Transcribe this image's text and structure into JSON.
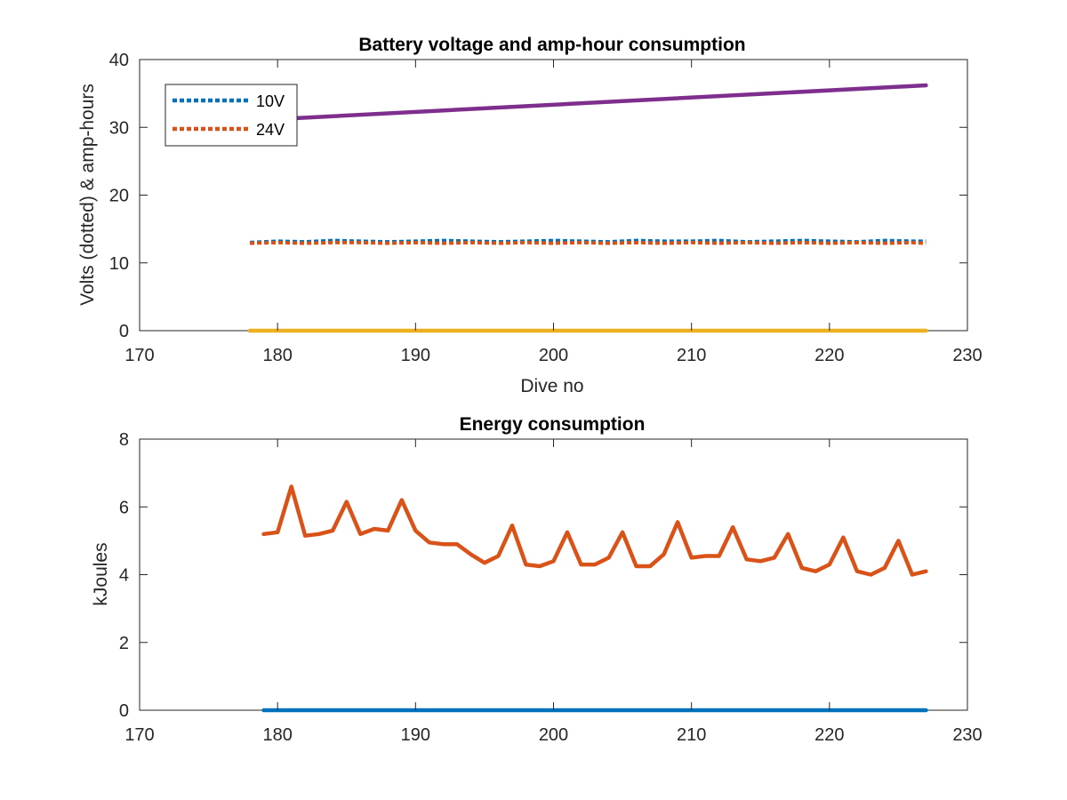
{
  "chart_data": [
    {
      "type": "line",
      "title": "Battery voltage and amp-hour consumption",
      "xlabel": "Dive no",
      "ylabel": "Volts (dotted) & amp-hours",
      "xlim": [
        170,
        230
      ],
      "ylim": [
        0,
        40
      ],
      "xticks": [
        170,
        180,
        190,
        200,
        210,
        220,
        230
      ],
      "yticks": [
        0,
        10,
        20,
        30,
        40
      ],
      "grid": false,
      "legend": {
        "location": "top-left",
        "entries": [
          "10V",
          "24V"
        ]
      },
      "series": [
        {
          "name": "10V",
          "color": "#0072BD",
          "style": "dotted",
          "x": [
            178,
            180,
            182,
            184,
            186,
            188,
            190,
            192,
            194,
            196,
            198,
            200,
            202,
            204,
            206,
            208,
            210,
            212,
            214,
            216,
            218,
            220,
            222,
            224,
            226,
            227
          ],
          "y": [
            13.0,
            13.2,
            13.1,
            13.3,
            13.2,
            13.1,
            13.2,
            13.3,
            13.2,
            13.1,
            13.2,
            13.3,
            13.2,
            13.1,
            13.3,
            13.2,
            13.2,
            13.3,
            13.1,
            13.2,
            13.3,
            13.2,
            13.1,
            13.3,
            13.2,
            13.2
          ]
        },
        {
          "name": "24V",
          "color": "#D95319",
          "style": "dotted",
          "x": [
            178,
            180,
            182,
            184,
            186,
            188,
            190,
            192,
            194,
            196,
            198,
            200,
            202,
            204,
            206,
            208,
            210,
            212,
            214,
            216,
            218,
            220,
            222,
            224,
            226,
            227
          ],
          "y": [
            12.9,
            13.0,
            12.9,
            13.0,
            13.0,
            12.9,
            13.0,
            12.9,
            13.0,
            12.9,
            13.0,
            12.9,
            13.0,
            12.9,
            13.0,
            12.9,
            13.0,
            12.9,
            13.0,
            12.9,
            13.0,
            12.9,
            13.0,
            12.9,
            13.0,
            12.9
          ]
        },
        {
          "color": "#7E2F8E",
          "style": "solid",
          "x": [
            178,
            227
          ],
          "y": [
            31.0,
            36.2
          ]
        },
        {
          "color": "#EDB120",
          "style": "solid",
          "x": [
            178,
            227
          ],
          "y": [
            0,
            0
          ]
        }
      ]
    },
    {
      "type": "line",
      "title": "Energy consumption",
      "xlabel": "",
      "ylabel": "kJoules",
      "xlim": [
        170,
        230
      ],
      "ylim": [
        0,
        8
      ],
      "xticks": [
        170,
        180,
        190,
        200,
        210,
        220,
        230
      ],
      "yticks": [
        0,
        2,
        4,
        6,
        8
      ],
      "grid": false,
      "series": [
        {
          "color": "#0072BD",
          "style": "solid",
          "x": [
            179,
            227
          ],
          "y": [
            0,
            0
          ]
        },
        {
          "color": "#D95319",
          "style": "solid",
          "x": [
            179,
            180,
            181,
            182,
            183,
            184,
            185,
            186,
            187,
            188,
            189,
            190,
            191,
            192,
            193,
            194,
            195,
            196,
            197,
            198,
            199,
            200,
            201,
            202,
            203,
            204,
            205,
            206,
            207,
            208,
            209,
            210,
            211,
            212,
            213,
            214,
            215,
            216,
            217,
            218,
            219,
            220,
            221,
            222,
            223,
            224,
            225,
            226,
            227
          ],
          "y": [
            5.2,
            5.25,
            6.6,
            5.15,
            5.2,
            5.3,
            6.15,
            5.2,
            5.35,
            5.3,
            6.2,
            5.3,
            4.95,
            4.9,
            4.9,
            4.6,
            4.35,
            4.55,
            5.45,
            4.3,
            4.25,
            4.4,
            5.25,
            4.3,
            4.3,
            4.5,
            5.25,
            4.25,
            4.25,
            4.6,
            5.55,
            4.5,
            4.55,
            4.55,
            5.4,
            4.45,
            4.4,
            4.5,
            5.2,
            4.2,
            4.1,
            4.3,
            5.1,
            4.1,
            4.0,
            4.2,
            5.0,
            4.0,
            4.1
          ]
        }
      ]
    }
  ]
}
